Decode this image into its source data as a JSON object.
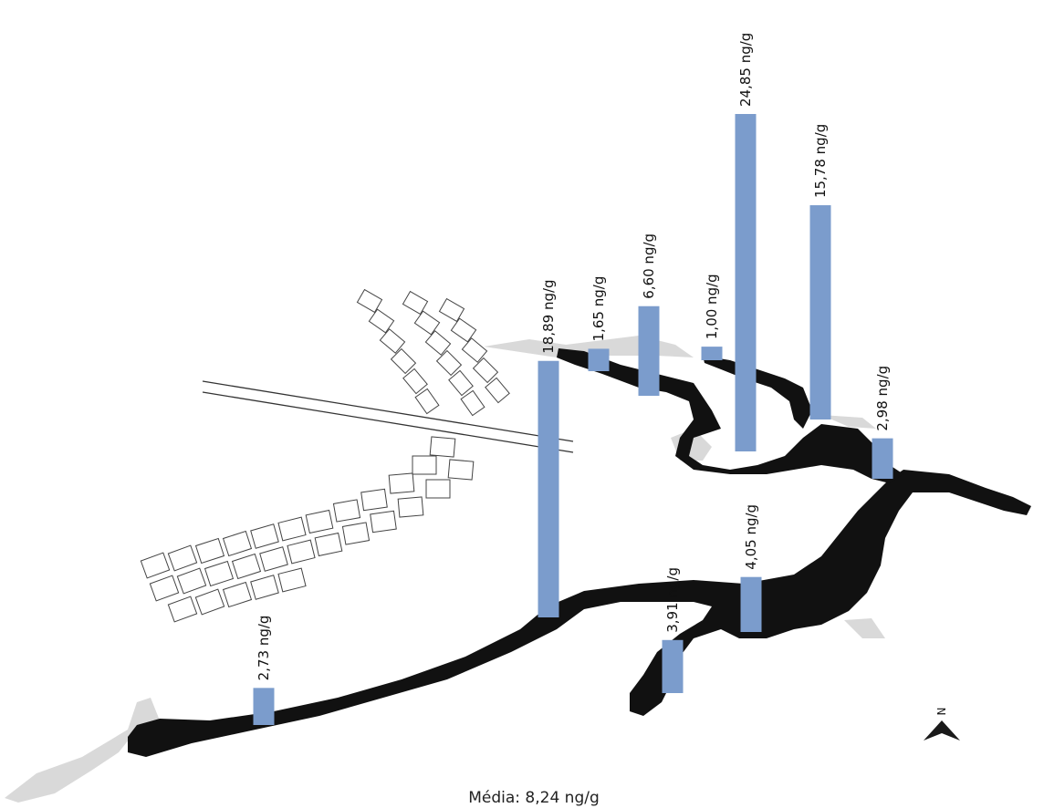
{
  "chart_data": {
    "type": "bar",
    "title": "",
    "unit": "ng/g",
    "series": [
      {
        "values": [
          2.73,
          18.89,
          1.65,
          6.6,
          1.0,
          24.85,
          15.78,
          2.98,
          3.91,
          4.05
        ],
        "labels": [
          "2,73 ng/g",
          "18,89 ng/g",
          "1,65 ng/g",
          "6,60 ng/g",
          "1,00 ng/g",
          "24,85 ng/g",
          "15,78 ng/g",
          "2,98 ng/g",
          "3,91 ng/g",
          "4,05 ng/g"
        ]
      }
    ],
    "mean_label": "Média: 8,24 ng/g",
    "bar_color": "#7b9ccc",
    "north_arrow_letter": "N"
  }
}
